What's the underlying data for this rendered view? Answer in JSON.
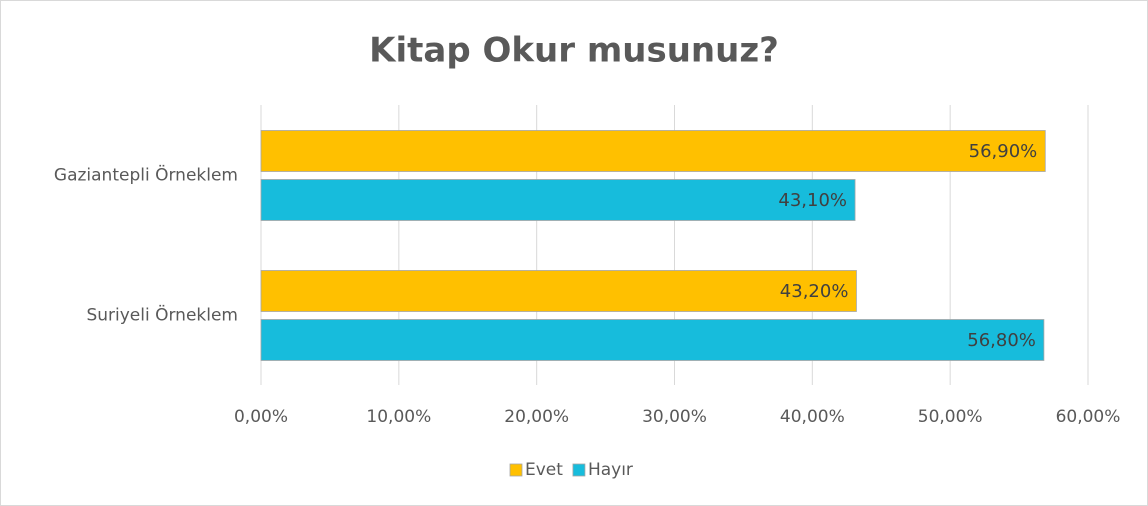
{
  "chart_data": {
    "type": "hbar",
    "title": "Kitap Okur musunuz?",
    "categories": [
      "Gaziantepli Örneklem",
      "Suriyeli Örneklem"
    ],
    "series": [
      {
        "name": "Evet",
        "color": "#ffc000",
        "values": [
          56.9,
          43.2
        ],
        "value_labels": [
          "56,90%",
          "43,20%"
        ]
      },
      {
        "name": "Hayır",
        "color": "#17bcdc",
        "values": [
          43.1,
          56.8
        ],
        "value_labels": [
          "43,10%",
          "56,80%"
        ]
      }
    ],
    "xlim": [
      0,
      60
    ],
    "xticks": [
      {
        "value": 0,
        "label": "0,00%"
      },
      {
        "value": 10,
        "label": "10,00%"
      },
      {
        "value": 20,
        "label": "20,00%"
      },
      {
        "value": 30,
        "label": "30,00%"
      },
      {
        "value": 40,
        "label": "40,00%"
      },
      {
        "value": 50,
        "label": "50,00%"
      },
      {
        "value": 60,
        "label": "60,00%"
      }
    ],
    "grid": true,
    "legend": "bottom"
  }
}
